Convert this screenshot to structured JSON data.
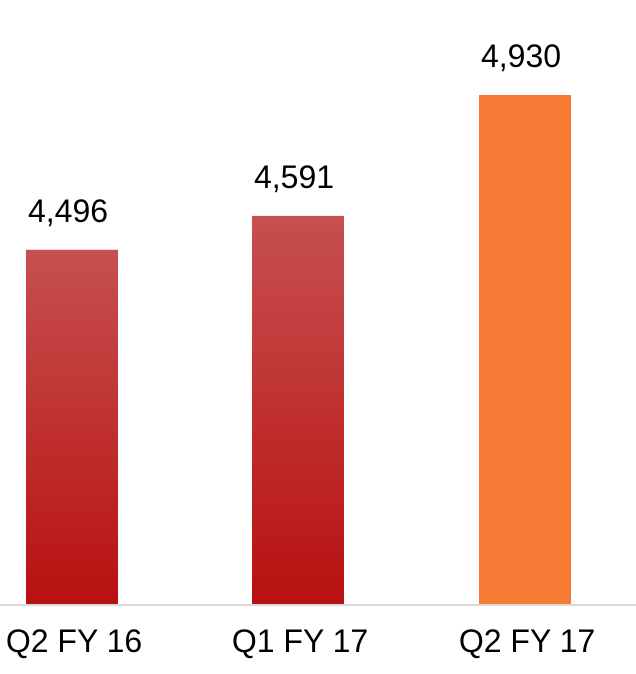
{
  "chart_data": {
    "type": "bar",
    "categories": [
      "Q2 FY 16",
      "Q1 FY 17",
      "Q2 FY 17"
    ],
    "values": [
      4496,
      4591,
      4930
    ],
    "data_labels": [
      "4,496",
      "4,591",
      "4,930"
    ],
    "title": "",
    "xlabel": "",
    "ylabel": "",
    "ylim": [
      3500,
      4930
    ],
    "grid": false,
    "legend": "none",
    "colors": {
      "bar_top": "#c75050",
      "bar_bottom": "#b81010",
      "highlight": "#f77a35",
      "axis": "#d9d9d9"
    }
  }
}
